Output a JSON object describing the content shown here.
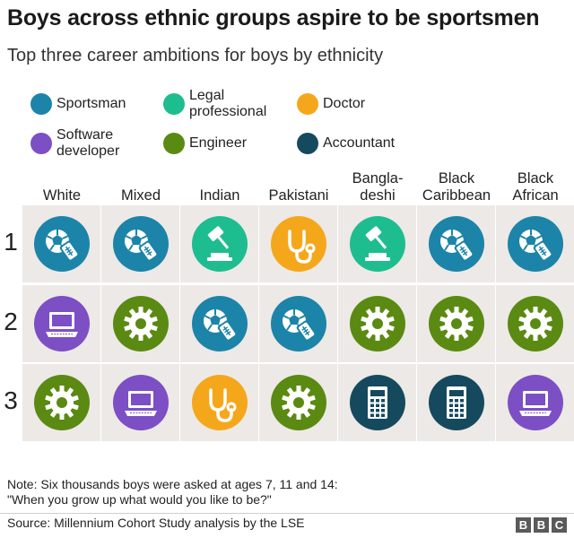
{
  "title": "Boys across ethnic groups aspire to be sportsmen",
  "subtitle": "Top three career ambitions for boys by ethnicity",
  "colors": {
    "sportsman": "#1c84a8",
    "legal": "#1ebd8f",
    "doctor": "#f5a71c",
    "software": "#7c4fc4",
    "engineer": "#5a8a12",
    "accountant": "#154a5e",
    "cell_bg": "#ede9e6"
  },
  "legend": [
    {
      "key": "sportsman",
      "label": "Sportsman"
    },
    {
      "key": "legal",
      "label": "Legal\nprofessional"
    },
    {
      "key": "doctor",
      "label": "Doctor"
    },
    {
      "key": "software",
      "label": "Software\ndeveloper"
    },
    {
      "key": "engineer",
      "label": "Engineer"
    },
    {
      "key": "accountant",
      "label": "Accountant"
    }
  ],
  "chart_data": {
    "type": "table",
    "columns": [
      "White",
      "Mixed",
      "Indian",
      "Pakistani",
      "Bangla-\ndeshi",
      "Black\nCaribbean",
      "Black\nAfrican"
    ],
    "rows": [
      "1",
      "2",
      "3"
    ],
    "cells": [
      [
        "sportsman",
        "sportsman",
        "legal",
        "doctor",
        "legal",
        "sportsman",
        "sportsman"
      ],
      [
        "software",
        "engineer",
        "sportsman",
        "sportsman",
        "engineer",
        "engineer",
        "engineer"
      ],
      [
        "engineer",
        "software",
        "doctor",
        "engineer",
        "accountant",
        "accountant",
        "software"
      ]
    ]
  },
  "note_line1": "Note: Six thousands boys were asked at ages 7, 11 and 14:",
  "note_line2": "\"When you grow up what would you like to be?\"",
  "source": "Source: Millennium Cohort Study analysis by the LSE",
  "logo_letters": [
    "B",
    "B",
    "C"
  ]
}
